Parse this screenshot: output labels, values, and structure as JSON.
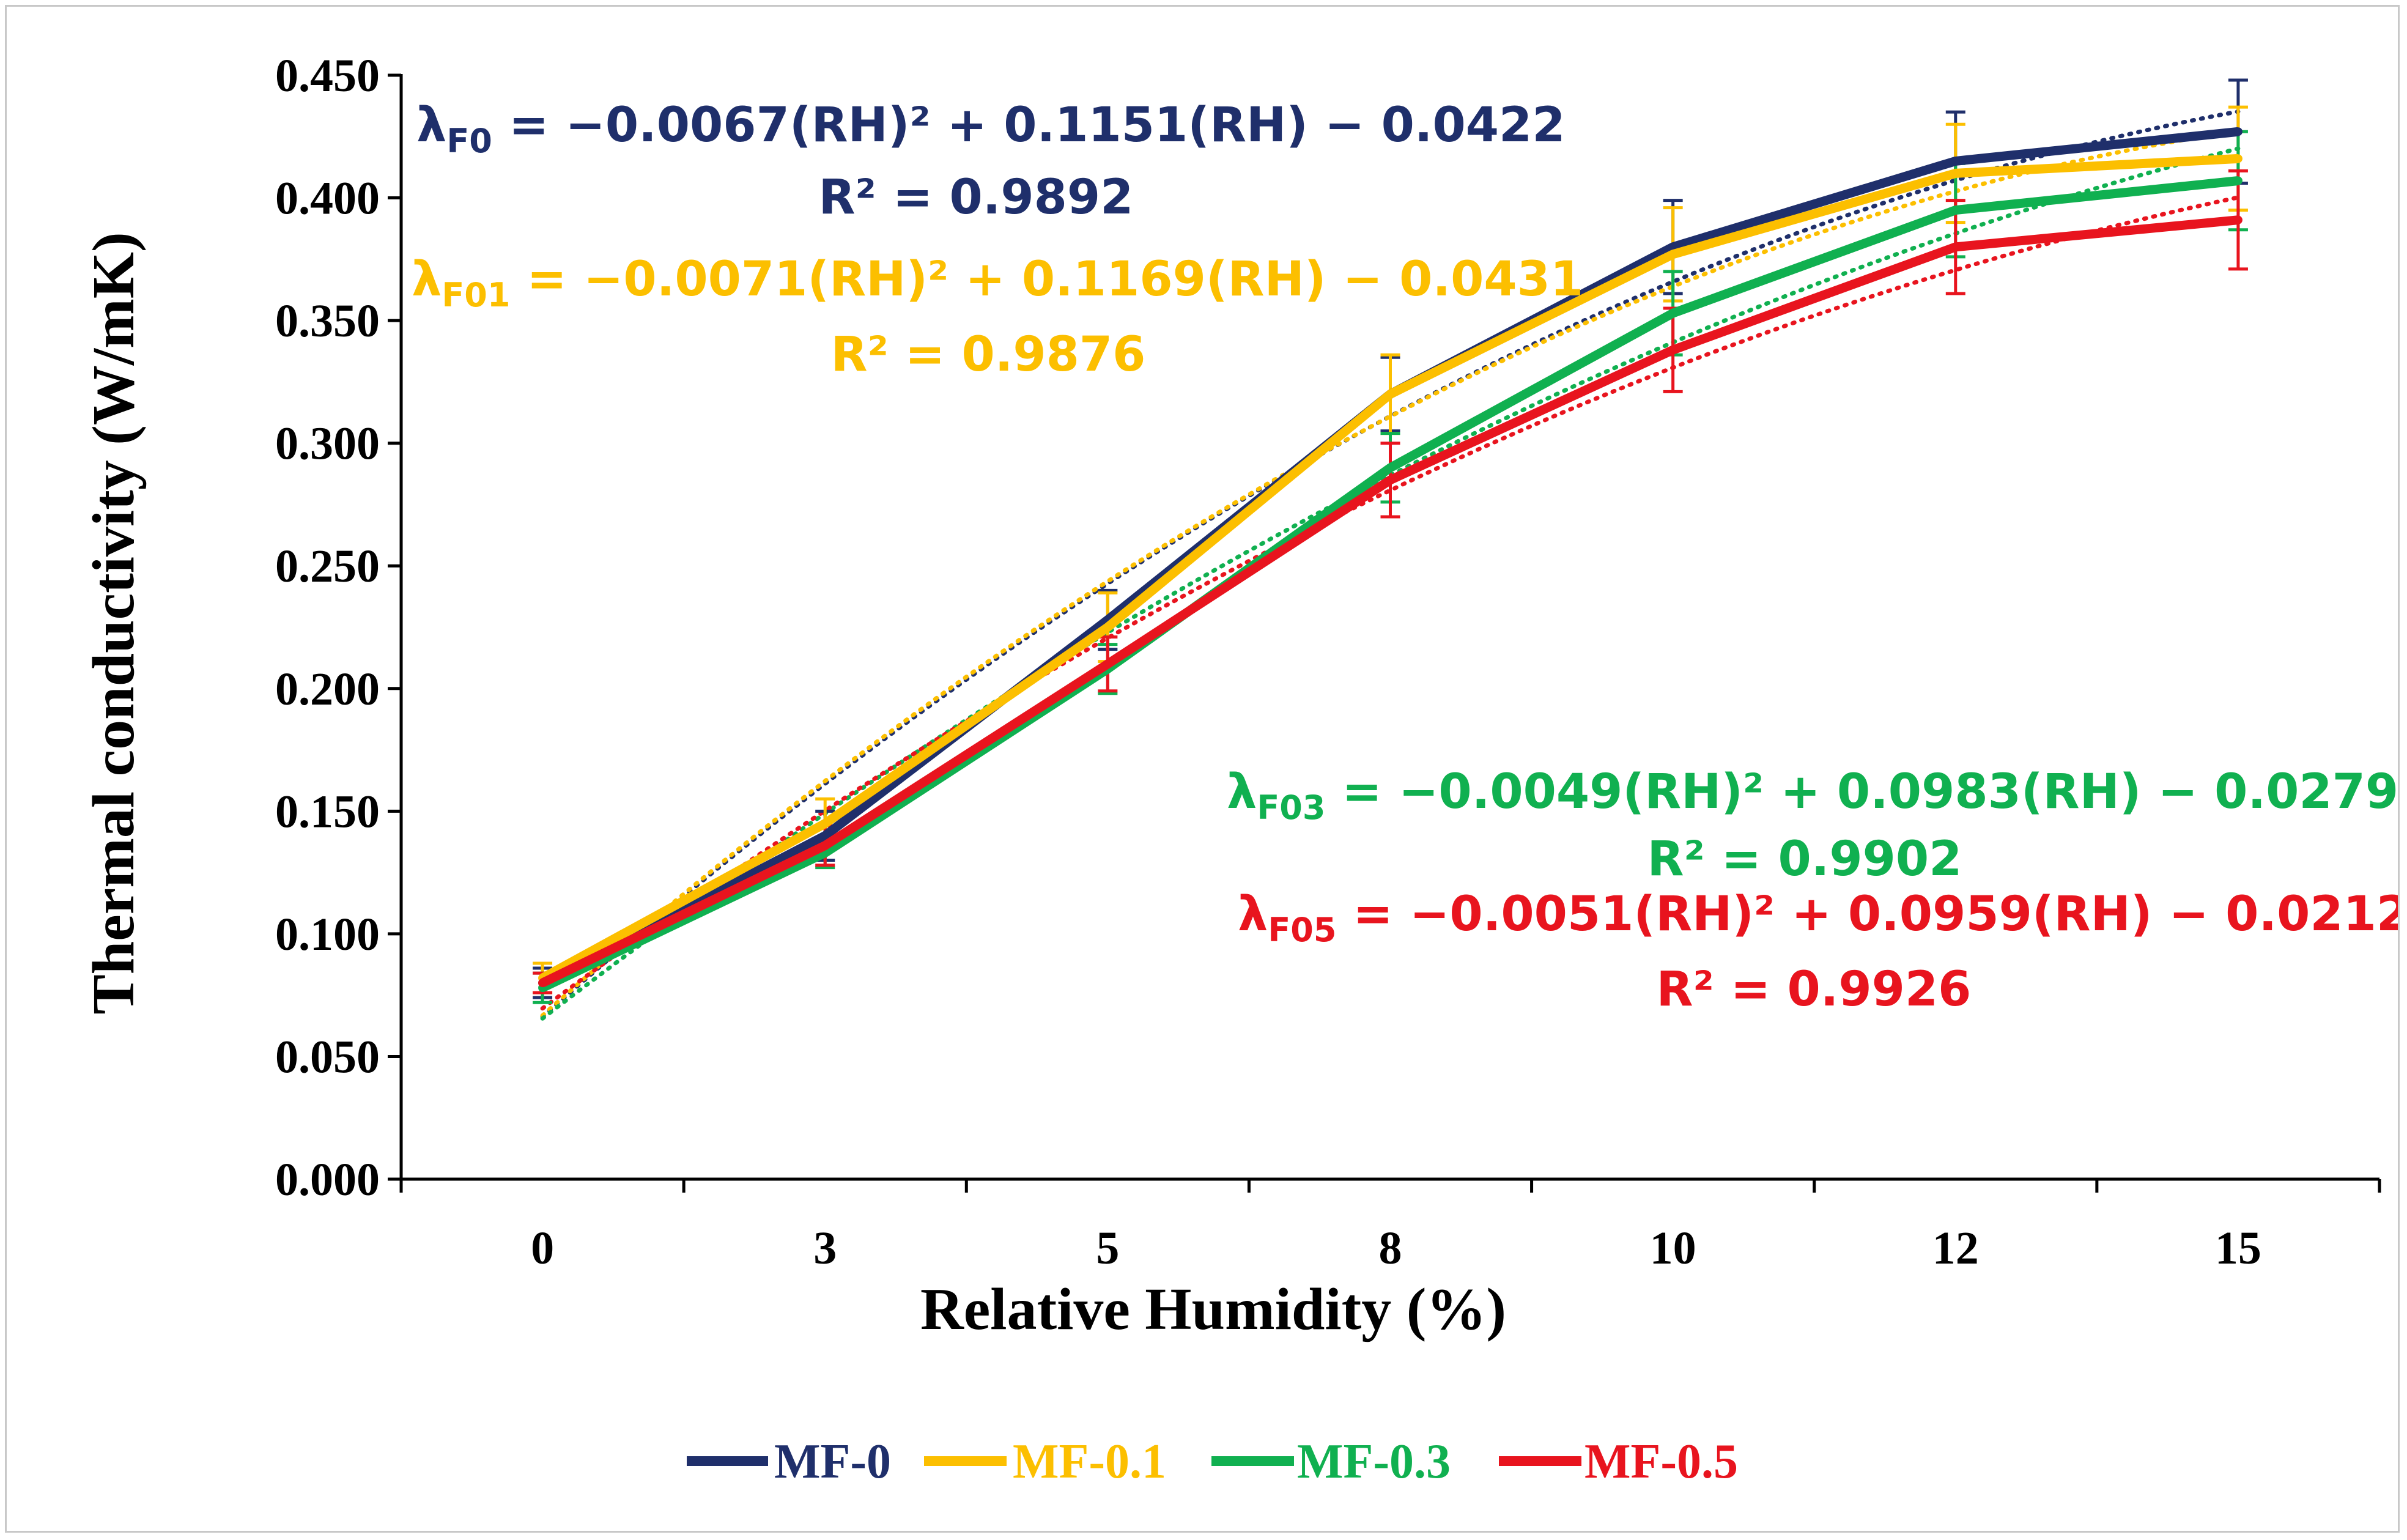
{
  "chart_data": {
    "type": "line",
    "title": "",
    "xlabel": "Relative Humidity (%)",
    "ylabel": "Thermal conductivity (W/mK)",
    "categories": [
      "0",
      "3",
      "5",
      "8",
      "10",
      "12",
      "15"
    ],
    "x": [
      0,
      3,
      5,
      8,
      10,
      12,
      15
    ],
    "ylim": [
      0.0,
      0.45
    ],
    "yticks": [
      "0.000",
      "0.050",
      "0.100",
      "0.150",
      "0.200",
      "0.250",
      "0.300",
      "0.350",
      "0.400",
      "0.450"
    ],
    "grid": false,
    "legend_position": "bottom",
    "series": [
      {
        "name": "MF-0",
        "color": "#1f2f6b",
        "values": [
          0.08,
          0.14,
          0.228,
          0.32,
          0.38,
          0.415,
          0.427
        ],
        "errors": [
          0.006,
          0.01,
          0.012,
          0.015,
          0.019,
          0.02,
          0.021
        ],
        "equation": {
          "lambda": "λ",
          "subscript": "F0",
          "body": " = −0.0067(RH)² + 0.1151(RH) − 0.0422",
          "r2": "R² = 0.9892"
        },
        "trend": {
          "a": -0.0067,
          "b": 0.1151,
          "c": -0.0422
        }
      },
      {
        "name": "MF-0.1",
        "color": "#fcbf00",
        "values": [
          0.082,
          0.145,
          0.225,
          0.32,
          0.377,
          0.41,
          0.416
        ],
        "errors": [
          0.006,
          0.01,
          0.014,
          0.016,
          0.019,
          0.02,
          0.021
        ],
        "equation": {
          "lambda": "λ",
          "subscript": "F01",
          "body": " = −0.0071(RH)² + 0.1169(RH) − 0.0431",
          "r2": "R² = 0.9876"
        },
        "trend": {
          "a": -0.0071,
          "b": 0.1169,
          "c": -0.0431
        }
      },
      {
        "name": "MF-0.3",
        "color": "#10b050",
        "values": [
          0.078,
          0.133,
          0.208,
          0.29,
          0.353,
          0.395,
          0.407
        ],
        "errors": [
          0.006,
          0.006,
          0.01,
          0.014,
          0.017,
          0.019,
          0.02
        ],
        "equation": {
          "lambda": "λ",
          "subscript": "F03",
          "body": " = −0.0049(RH)² + 0.0983(RH) − 0.0279",
          "r2": "R² = 0.9902"
        },
        "trend": {
          "a": -0.0049,
          "b": 0.0983,
          "c": -0.0279
        }
      },
      {
        "name": "MF-0.5",
        "color": "#e8141e",
        "values": [
          0.08,
          0.136,
          0.21,
          0.285,
          0.338,
          0.38,
          0.391
        ],
        "errors": [
          0.004,
          0.008,
          0.011,
          0.015,
          0.017,
          0.019,
          0.02
        ],
        "equation": {
          "lambda": "λ",
          "subscript": "F05",
          "body": " = −0.0051(RH)² + 0.0959(RH) − 0.0212",
          "r2": "R² = 0.9926"
        },
        "trend": {
          "a": -0.0051,
          "b": 0.0959,
          "c": -0.0212
        }
      }
    ]
  }
}
